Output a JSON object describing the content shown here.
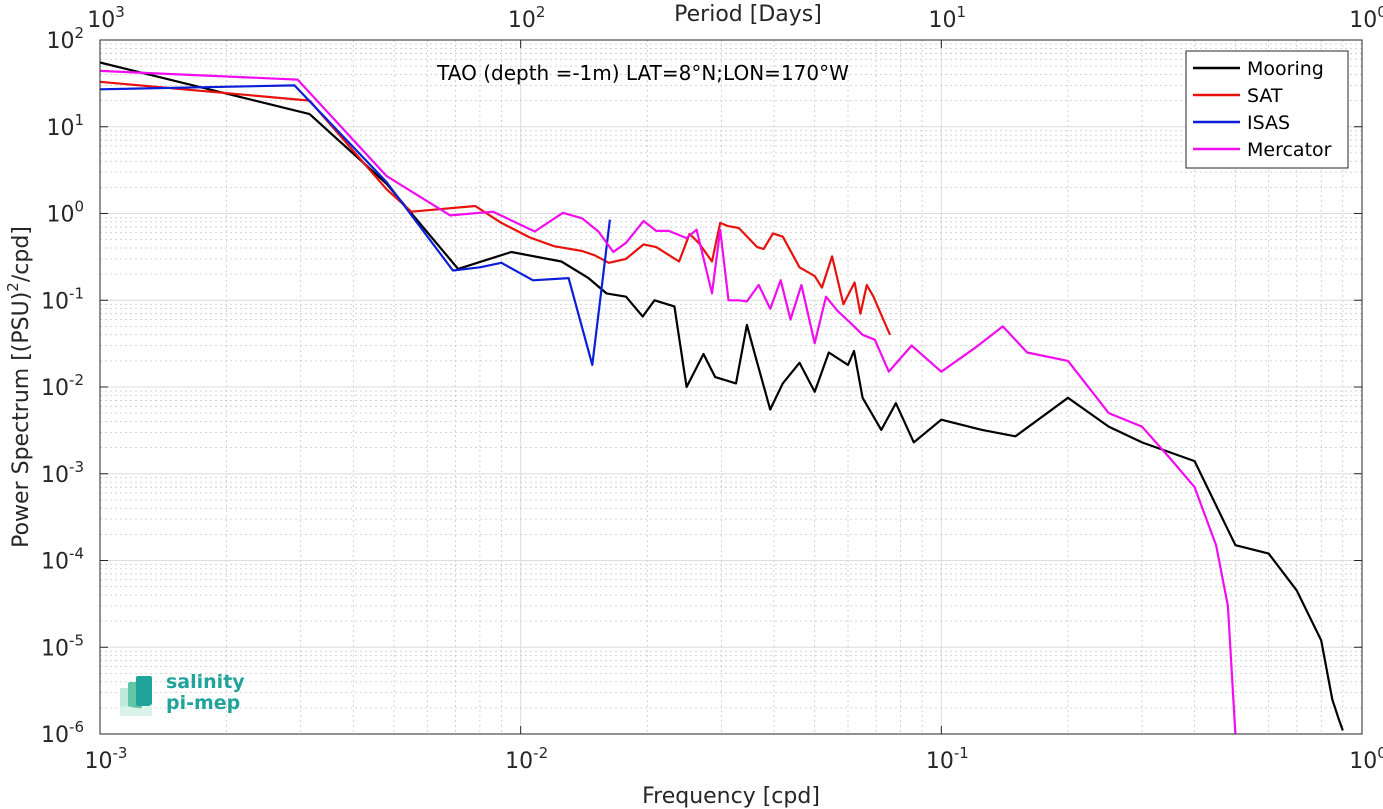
{
  "chart_data": {
    "type": "line",
    "title": "TAO (depth =-1m) LAT=8°N;LON=170°W",
    "xlabel": "Frequency [cpd]",
    "ylabel_main": "Power Spectrum [(PSU)",
    "ylabel_sup": "2",
    "ylabel_tail": "/cpd]",
    "top_label": "Period [Days]",
    "xscale": "log",
    "yscale": "log",
    "xlim": [
      0.001,
      1
    ],
    "ylim": [
      1e-06,
      100
    ],
    "grid": true,
    "legend_position": "top-right",
    "x_ticks": [
      {
        "base": "10",
        "exp": "-3"
      },
      {
        "base": "10",
        "exp": "-2"
      },
      {
        "base": "10",
        "exp": "-1"
      },
      {
        "base": "10",
        "exp": "0"
      }
    ],
    "top_ticks": [
      {
        "base": "10",
        "exp": "3"
      },
      {
        "base": "10",
        "exp": "2"
      },
      {
        "base": "10",
        "exp": "1"
      },
      {
        "base": "10",
        "exp": "0"
      }
    ],
    "y_ticks": [
      {
        "base": "10",
        "exp": "2"
      },
      {
        "base": "10",
        "exp": "1"
      },
      {
        "base": "10",
        "exp": "0"
      },
      {
        "base": "10",
        "exp": "-1"
      },
      {
        "base": "10",
        "exp": "-2"
      },
      {
        "base": "10",
        "exp": "-3"
      },
      {
        "base": "10",
        "exp": "-4"
      },
      {
        "base": "10",
        "exp": "-5"
      },
      {
        "base": "10",
        "exp": "-6"
      }
    ],
    "series": [
      {
        "name": "Mooring",
        "color": "#000000",
        "x": [
          0.001,
          0.00315,
          0.0048,
          0.0071,
          0.0095,
          0.0125,
          0.0145,
          0.016,
          0.0178,
          0.0195,
          0.0208,
          0.0232,
          0.0248,
          0.0272,
          0.029,
          0.0325,
          0.0345,
          0.0362,
          0.0392,
          0.042,
          0.046,
          0.05,
          0.054,
          0.06,
          0.062,
          0.065,
          0.072,
          0.078,
          0.086,
          0.1,
          0.125,
          0.15,
          0.2,
          0.25,
          0.3,
          0.4,
          0.5,
          0.6,
          0.7,
          0.8,
          0.85,
          0.88,
          0.9
        ],
        "y": [
          55,
          14,
          2.2,
          0.23,
          0.36,
          0.28,
          0.18,
          0.12,
          0.11,
          0.065,
          0.1,
          0.085,
          0.01,
          0.024,
          0.013,
          0.011,
          0.052,
          0.022,
          0.0055,
          0.011,
          0.019,
          0.0088,
          0.025,
          0.018,
          0.026,
          0.0075,
          0.0032,
          0.0065,
          0.0023,
          0.0042,
          0.0032,
          0.0027,
          0.0075,
          0.0035,
          0.0023,
          0.0014,
          0.00015,
          0.00012,
          4.5e-05,
          1.2e-05,
          2.5e-06,
          1.5e-06,
          1.1e-06
        ]
      },
      {
        "name": "SAT",
        "color": "#e8120c",
        "x": [
          0.001,
          0.00315,
          0.0048,
          0.0055,
          0.0078,
          0.009,
          0.0105,
          0.012,
          0.014,
          0.015,
          0.0162,
          0.0178,
          0.0196,
          0.021,
          0.0238,
          0.0252,
          0.0265,
          0.0285,
          0.0298,
          0.031,
          0.033,
          0.0365,
          0.0378,
          0.0398,
          0.042,
          0.046,
          0.05,
          0.052,
          0.055,
          0.0585,
          0.0622,
          0.0642,
          0.0665,
          0.069,
          0.0728,
          0.0755
        ],
        "y": [
          33,
          20,
          1.9,
          1.05,
          1.22,
          0.78,
          0.53,
          0.42,
          0.37,
          0.33,
          0.27,
          0.3,
          0.44,
          0.41,
          0.28,
          0.58,
          0.46,
          0.28,
          0.78,
          0.72,
          0.68,
          0.41,
          0.39,
          0.59,
          0.54,
          0.24,
          0.19,
          0.14,
          0.32,
          0.09,
          0.16,
          0.07,
          0.15,
          0.11,
          0.06,
          0.04
        ]
      },
      {
        "name": "ISAS",
        "color": "#0b1fd9",
        "x": [
          0.001,
          0.0029,
          0.0048,
          0.0069,
          0.008,
          0.009,
          0.0107,
          0.013,
          0.0148,
          0.0163
        ],
        "y": [
          27,
          30,
          2.3,
          0.22,
          0.24,
          0.27,
          0.17,
          0.18,
          0.018,
          0.85
        ]
      },
      {
        "name": "Mercator",
        "color": "#f20cf0",
        "x": [
          0.001,
          0.00295,
          0.0048,
          0.0068,
          0.0086,
          0.0108,
          0.0126,
          0.014,
          0.0153,
          0.0166,
          0.0178,
          0.0196,
          0.021,
          0.0225,
          0.0248,
          0.0262,
          0.0285,
          0.0298,
          0.0312,
          0.033,
          0.0345,
          0.0368,
          0.0392,
          0.0415,
          0.0438,
          0.0465,
          0.05,
          0.0532,
          0.0567,
          0.0608,
          0.065,
          0.0695,
          0.075,
          0.085,
          0.1,
          0.12,
          0.14,
          0.16,
          0.2,
          0.25,
          0.3,
          0.35,
          0.4,
          0.45,
          0.48,
          0.5
        ],
        "y": [
          44,
          35,
          2.7,
          0.95,
          1.05,
          0.62,
          1.02,
          0.88,
          0.62,
          0.36,
          0.46,
          0.82,
          0.63,
          0.63,
          0.52,
          0.65,
          0.12,
          0.65,
          0.1,
          0.1,
          0.097,
          0.15,
          0.08,
          0.17,
          0.06,
          0.15,
          0.032,
          0.11,
          0.075,
          0.055,
          0.04,
          0.035,
          0.015,
          0.03,
          0.015,
          0.028,
          0.05,
          0.025,
          0.02,
          0.005,
          0.0035,
          0.0015,
          0.0007,
          0.00015,
          3e-05,
          1e-06
        ]
      }
    ]
  },
  "logo": {
    "line1": "salinity",
    "line2": "pi-mep",
    "icon": "salinity-pi-mep-logo-icon"
  }
}
